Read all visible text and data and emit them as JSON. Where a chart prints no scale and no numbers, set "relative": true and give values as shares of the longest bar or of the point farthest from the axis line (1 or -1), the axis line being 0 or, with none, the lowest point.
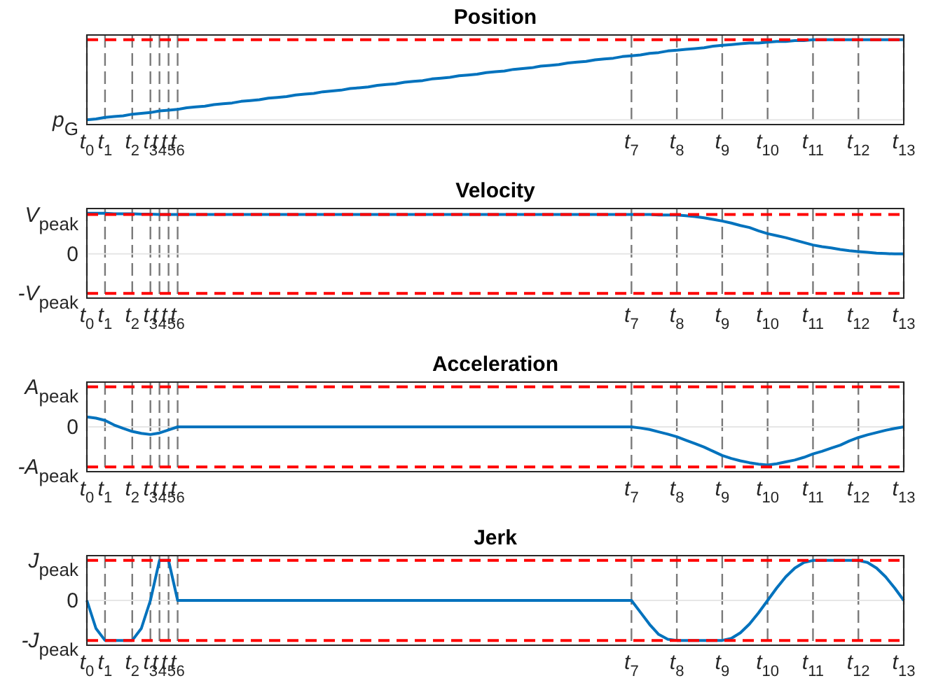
{
  "chart_data": [
    {
      "type": "line",
      "title": "Position",
      "relative": true,
      "grid": "x",
      "color": "#0072bd",
      "categories": [
        "t$_{0}$",
        null,
        "t$_{1}$",
        null,
        null,
        "t$_{2}$",
        null,
        "t$_{3}$",
        "t$_{4}$",
        "t$_{5}$",
        "t$_{6}$",
        null,
        null,
        null,
        null,
        null,
        null,
        null,
        null,
        null,
        null,
        null,
        null,
        null,
        null,
        null,
        null,
        null,
        null,
        null,
        null,
        null,
        null,
        null,
        null,
        null,
        null,
        null,
        null,
        null,
        null,
        null,
        null,
        null,
        null,
        null,
        null,
        null,
        null,
        null,
        null,
        null,
        null,
        null,
        null,
        null,
        null,
        null,
        null,
        null,
        "t$_{7}$",
        null,
        null,
        null,
        null,
        "t$_{8}$",
        null,
        null,
        null,
        null,
        "t$_{9}$",
        null,
        null,
        null,
        null,
        "t$_{10}$",
        null,
        null,
        null,
        null,
        "t$_{11}$",
        null,
        null,
        null,
        null,
        "t$_{12}$",
        null,
        null,
        null,
        null,
        "t$_{13}$"
      ],
      "values": [
        0,
        0.01,
        0.03,
        0.04,
        0.05,
        0.07,
        0.08,
        0.09,
        0.11,
        0.12,
        0.13,
        0.15,
        0.16,
        0.17,
        0.19,
        0.2,
        0.21,
        0.23,
        0.24,
        0.25,
        0.27,
        0.28,
        0.29,
        0.31,
        0.32,
        0.33,
        0.35,
        0.36,
        0.37,
        0.39,
        0.4,
        0.41,
        0.43,
        0.44,
        0.45,
        0.47,
        0.48,
        0.49,
        0.51,
        0.52,
        0.53,
        0.55,
        0.56,
        0.57,
        0.59,
        0.6,
        0.61,
        0.63,
        0.64,
        0.65,
        0.67,
        0.68,
        0.69,
        0.71,
        0.72,
        0.73,
        0.75,
        0.76,
        0.77,
        0.79,
        0.8,
        0.81,
        0.83,
        0.84,
        0.86,
        0.87,
        0.88,
        0.89,
        0.9,
        0.92,
        0.93,
        0.94,
        0.95,
        0.96,
        0.96,
        0.97,
        0.98,
        0.98,
        0.99,
        0.99,
        1,
        1,
        1,
        1,
        1,
        1,
        1,
        1,
        1,
        1,
        1
      ],
      "ref_lines": [
        {
          "axis": "y",
          "value": 0,
          "label": "p$_{G}$",
          "color": "#e6e6e6",
          "line_style": "solid"
        },
        {
          "axis": "y",
          "value": 1,
          "color": "#ff0000",
          "line_style": "dashed"
        }
      ]
    },
    {
      "type": "line",
      "title": "Velocity",
      "relative": true,
      "grid": "x",
      "color": "#0072bd",
      "categories": [
        "t$_{0}$",
        null,
        "t$_{1}$",
        null,
        null,
        "t$_{2}$",
        null,
        "t$_{3}$",
        "t$_{4}$",
        "t$_{5}$",
        "t$_{6}$",
        null,
        null,
        null,
        null,
        null,
        null,
        null,
        null,
        null,
        null,
        null,
        null,
        null,
        null,
        null,
        null,
        null,
        null,
        null,
        null,
        null,
        null,
        null,
        null,
        null,
        null,
        null,
        null,
        null,
        null,
        null,
        null,
        null,
        null,
        null,
        null,
        null,
        null,
        null,
        null,
        null,
        null,
        null,
        null,
        null,
        null,
        null,
        null,
        null,
        "t$_{7}$",
        null,
        null,
        null,
        null,
        "t$_{8}$",
        null,
        null,
        null,
        null,
        "t$_{9}$",
        null,
        null,
        null,
        null,
        "t$_{10}$",
        null,
        null,
        null,
        null,
        "t$_{11}$",
        null,
        null,
        null,
        null,
        "t$_{12}$",
        null,
        null,
        null,
        null,
        "t$_{13}$"
      ],
      "values": [
        1,
        1,
        1,
        0.99,
        0.99,
        0.99,
        0.98,
        0.98,
        0.97,
        0.97,
        0.97,
        0.97,
        0.97,
        0.97,
        0.97,
        0.97,
        0.97,
        0.97,
        0.97,
        0.97,
        0.97,
        0.97,
        0.97,
        0.97,
        0.97,
        0.97,
        0.97,
        0.97,
        0.97,
        0.97,
        0.97,
        0.97,
        0.97,
        0.97,
        0.97,
        0.97,
        0.97,
        0.97,
        0.97,
        0.97,
        0.97,
        0.97,
        0.97,
        0.97,
        0.97,
        0.97,
        0.97,
        0.97,
        0.97,
        0.97,
        0.97,
        0.97,
        0.97,
        0.97,
        0.97,
        0.97,
        0.97,
        0.97,
        0.97,
        0.97,
        0.97,
        0.97,
        0.97,
        0.96,
        0.96,
        0.96,
        0.94,
        0.92,
        0.89,
        0.85,
        0.81,
        0.76,
        0.7,
        0.65,
        0.57,
        0.5,
        0.45,
        0.4,
        0.34,
        0.28,
        0.22,
        0.18,
        0.15,
        0.11,
        0.08,
        0.06,
        0.04,
        0.02,
        0.01,
        0,
        0
      ],
      "ref_lines": [
        {
          "axis": "y",
          "value": 0,
          "label": "0",
          "color": "#e6e6e6",
          "line_style": "solid"
        },
        {
          "axis": "y",
          "value": 0.97,
          "label": "V$_{peak}$",
          "color": "#ff0000",
          "line_style": "dashed"
        },
        {
          "axis": "y",
          "value": -0.97,
          "label": "-V$_{peak}$",
          "color": "#ff0000",
          "line_style": "dashed"
        }
      ]
    },
    {
      "type": "line",
      "title": "Acceleration",
      "relative": true,
      "grid": "x",
      "color": "#0072bd",
      "categories": [
        "t$_{0}$",
        null,
        "t$_{1}$",
        null,
        null,
        "t$_{2}$",
        null,
        "t$_{3}$",
        "t$_{4}$",
        "t$_{5}$",
        "t$_{6}$",
        null,
        null,
        null,
        null,
        null,
        null,
        null,
        null,
        null,
        null,
        null,
        null,
        null,
        null,
        null,
        null,
        null,
        null,
        null,
        null,
        null,
        null,
        null,
        null,
        null,
        null,
        null,
        null,
        null,
        null,
        null,
        null,
        null,
        null,
        null,
        null,
        null,
        null,
        null,
        null,
        null,
        null,
        null,
        null,
        null,
        null,
        null,
        null,
        null,
        "t$_{7}$",
        null,
        null,
        null,
        null,
        "t$_{8}$",
        null,
        null,
        null,
        null,
        "t$_{9}$",
        null,
        null,
        null,
        null,
        "t$_{10}$",
        null,
        null,
        null,
        null,
        "t$_{11}$",
        null,
        null,
        null,
        null,
        "t$_{12}$",
        null,
        null,
        null,
        null,
        "t$_{13}$"
      ],
      "values": [
        0.26,
        0.23,
        0.17,
        0.05,
        -0.04,
        -0.12,
        -0.17,
        -0.2,
        -0.16,
        -0.08,
        0,
        0,
        0,
        0,
        0,
        0,
        0,
        0,
        0,
        0,
        0,
        0,
        0,
        0,
        0,
        0,
        0,
        0,
        0,
        0,
        0,
        0,
        0,
        0,
        0,
        0,
        0,
        0,
        0,
        0,
        0,
        0,
        0,
        0,
        0,
        0,
        0,
        0,
        0,
        0,
        0,
        0,
        0,
        0,
        0,
        0,
        0,
        0,
        0,
        0,
        0,
        -0.03,
        -0.07,
        -0.13,
        -0.19,
        -0.26,
        -0.35,
        -0.44,
        -0.53,
        -0.64,
        -0.75,
        -0.83,
        -0.89,
        -0.94,
        -0.98,
        -1,
        -0.97,
        -0.92,
        -0.87,
        -0.8,
        -0.71,
        -0.64,
        -0.56,
        -0.48,
        -0.37,
        -0.28,
        -0.21,
        -0.15,
        -0.09,
        -0.04,
        0
      ],
      "ref_lines": [
        {
          "axis": "y",
          "value": 0,
          "label": "0",
          "color": "#e6e6e6",
          "line_style": "solid"
        },
        {
          "axis": "y",
          "value": 1.05,
          "label": "A$_{peak}$",
          "color": "#ff0000",
          "line_style": "dashed"
        },
        {
          "axis": "y",
          "value": -1.05,
          "label": "-A$_{peak}$",
          "color": "#ff0000",
          "line_style": "dashed"
        }
      ]
    },
    {
      "type": "line",
      "title": "Jerk",
      "relative": true,
      "grid": "x",
      "color": "#0072bd",
      "categories": [
        "t$_{0}$",
        null,
        "t$_{1}$",
        null,
        null,
        "t$_{2}$",
        null,
        "t$_{3}$",
        "t$_{4}$",
        "t$_{5}$",
        "t$_{6}$",
        null,
        null,
        null,
        null,
        null,
        null,
        null,
        null,
        null,
        null,
        null,
        null,
        null,
        null,
        null,
        null,
        null,
        null,
        null,
        null,
        null,
        null,
        null,
        null,
        null,
        null,
        null,
        null,
        null,
        null,
        null,
        null,
        null,
        null,
        null,
        null,
        null,
        null,
        null,
        null,
        null,
        null,
        null,
        null,
        null,
        null,
        null,
        null,
        null,
        "t$_{7}$",
        null,
        null,
        null,
        null,
        "t$_{8}$",
        null,
        null,
        null,
        null,
        "t$_{9}$",
        null,
        null,
        null,
        null,
        "t$_{10}$",
        null,
        null,
        null,
        null,
        "t$_{11}$",
        null,
        null,
        null,
        null,
        "t$_{12}$",
        null,
        null,
        null,
        null,
        "t$_{13}$"
      ],
      "values": [
        0,
        -0.7,
        -1,
        -1,
        -1,
        -1,
        -0.7,
        0,
        1,
        1,
        0,
        0,
        0,
        0,
        0,
        0,
        0,
        0,
        0,
        0,
        0,
        0,
        0,
        0,
        0,
        0,
        0,
        0,
        0,
        0,
        0,
        0,
        0,
        0,
        0,
        0,
        0,
        0,
        0,
        0,
        0,
        0,
        0,
        0,
        0,
        0,
        0,
        0,
        0,
        0,
        0,
        0,
        0,
        0,
        0,
        0,
        0,
        0,
        0,
        0,
        0,
        -0.3,
        -0.6,
        -0.85,
        -0.97,
        -1,
        -1,
        -1,
        -1,
        -1,
        -1,
        -0.95,
        -0.81,
        -0.59,
        -0.31,
        0,
        0.31,
        0.59,
        0.81,
        0.95,
        1,
        1,
        1,
        1,
        1,
        1,
        0.95,
        0.81,
        0.59,
        0.31,
        0
      ],
      "ref_lines": [
        {
          "axis": "y",
          "value": 0,
          "label": "0",
          "color": "#e6e6e6",
          "line_style": "solid"
        },
        {
          "axis": "y",
          "value": 1,
          "label": "J$_{peak}$",
          "color": "#ff0000",
          "line_style": "dashed"
        },
        {
          "axis": "y",
          "value": -1,
          "label": "-J$_{peak}$",
          "color": "#ff0000",
          "line_style": "dashed"
        }
      ]
    }
  ]
}
